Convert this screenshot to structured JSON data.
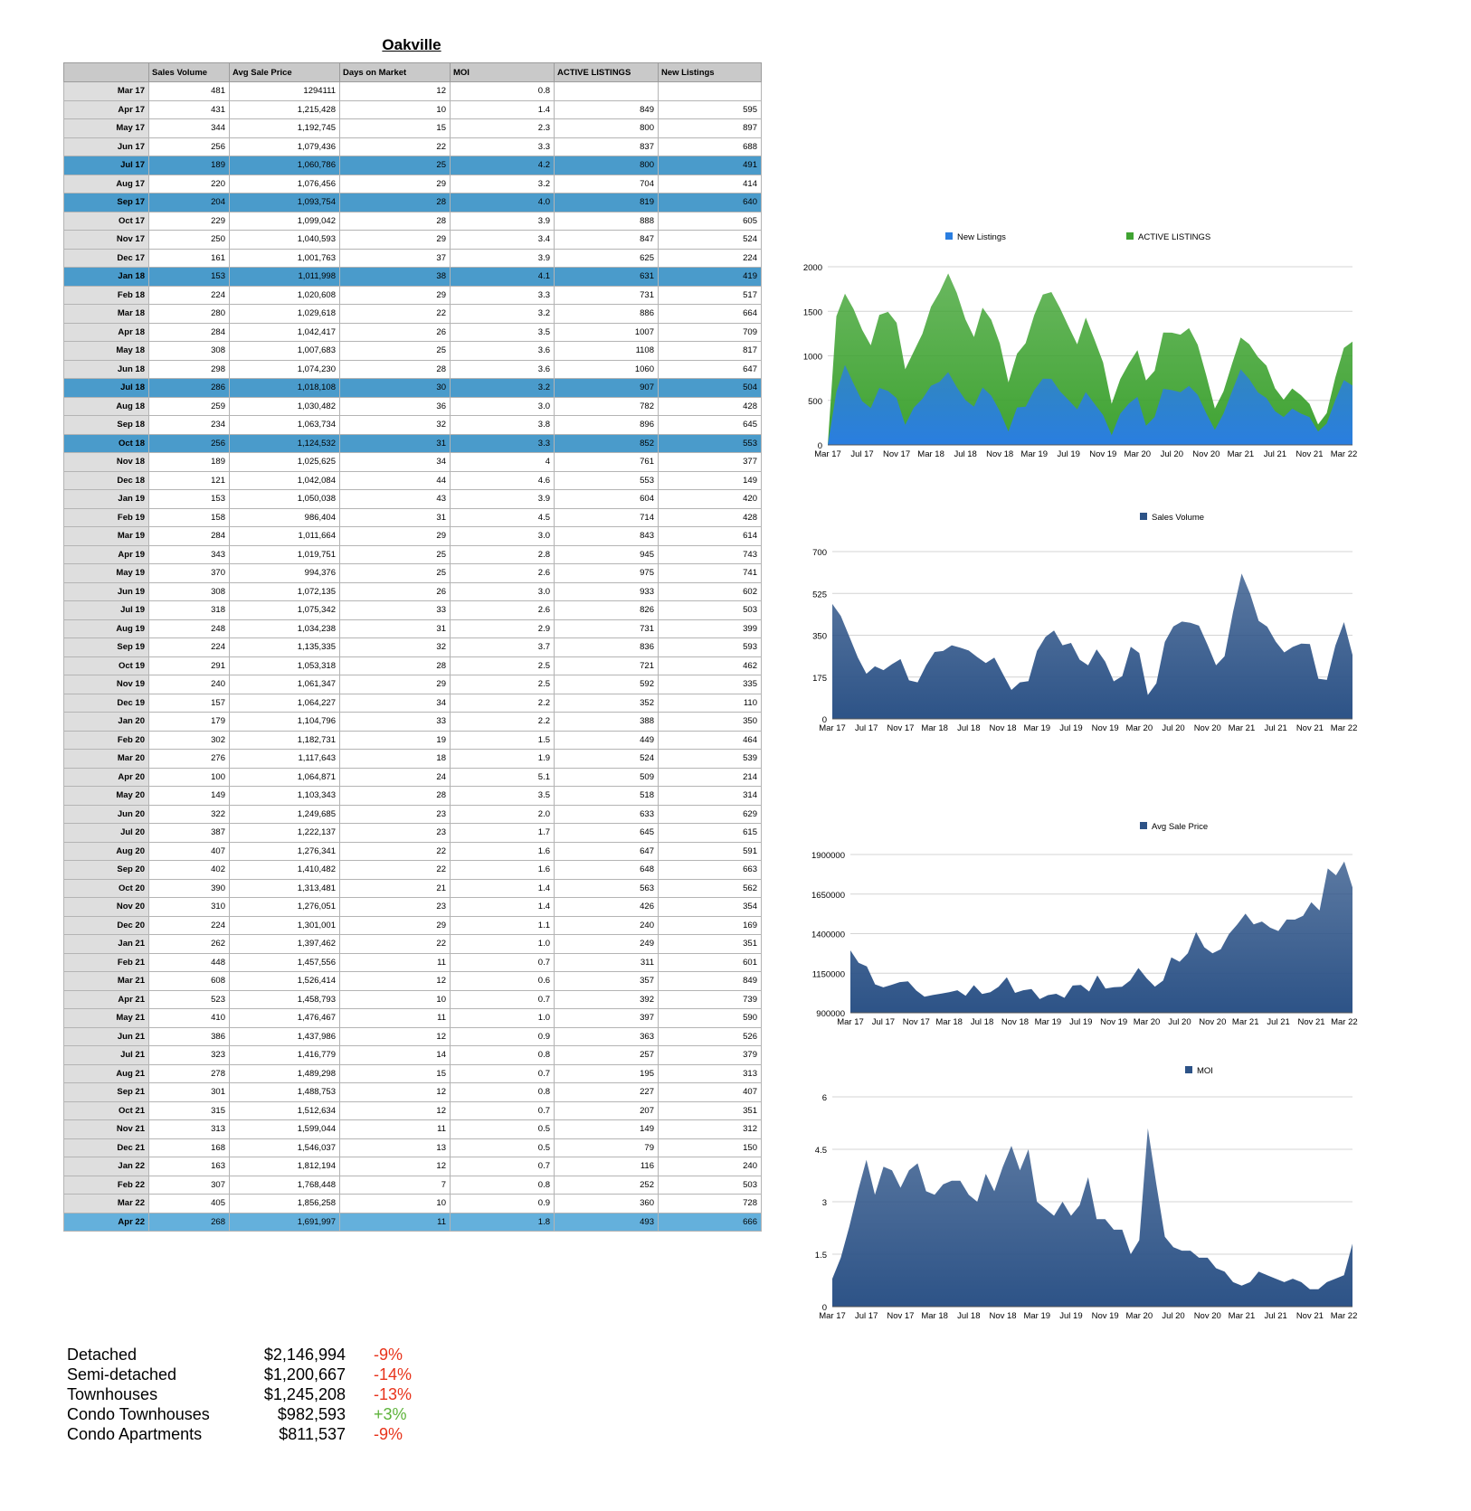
{
  "title": "Oakville",
  "table": {
    "columns": [
      "",
      "Sales Volume",
      "Avg Sale Price",
      "Days on Market",
      "MOI",
      "ACTIVE LISTINGS",
      "New Listings"
    ],
    "highlight_rows": [
      4,
      6,
      10,
      16,
      19
    ],
    "highlight_rows_light": [
      61,
      62
    ],
    "rows": [
      [
        "Mar 17",
        "481",
        "1294111",
        "12",
        "0.8",
        "",
        ""
      ],
      [
        "Apr 17",
        "431",
        "1,215,428",
        "10",
        "1.4",
        "849",
        "595"
      ],
      [
        "May 17",
        "344",
        "1,192,745",
        "15",
        "2.3",
        "800",
        "897"
      ],
      [
        "Jun 17",
        "256",
        "1,079,436",
        "22",
        "3.3",
        "837",
        "688"
      ],
      [
        "Jul 17",
        "189",
        "1,060,786",
        "25",
        "4.2",
        "800",
        "491"
      ],
      [
        "Aug 17",
        "220",
        "1,076,456",
        "29",
        "3.2",
        "704",
        "414"
      ],
      [
        "Sep 17",
        "204",
        "1,093,754",
        "28",
        "4.0",
        "819",
        "640"
      ],
      [
        "Oct 17",
        "229",
        "1,099,042",
        "28",
        "3.9",
        "888",
        "605"
      ],
      [
        "Nov 17",
        "250",
        "1,040,593",
        "29",
        "3.4",
        "847",
        "524"
      ],
      [
        "Dec 17",
        "161",
        "1,001,763",
        "37",
        "3.9",
        "625",
        "224"
      ],
      [
        "Jan 18",
        "153",
        "1,011,998",
        "38",
        "4.1",
        "631",
        "419"
      ],
      [
        "Feb 18",
        "224",
        "1,020,608",
        "29",
        "3.3",
        "731",
        "517"
      ],
      [
        "Mar 18",
        "280",
        "1,029,618",
        "22",
        "3.2",
        "886",
        "664"
      ],
      [
        "Apr 18",
        "284",
        "1,042,417",
        "26",
        "3.5",
        "1007",
        "709"
      ],
      [
        "May 18",
        "308",
        "1,007,683",
        "25",
        "3.6",
        "1108",
        "817"
      ],
      [
        "Jun 18",
        "298",
        "1,074,230",
        "28",
        "3.6",
        "1060",
        "647"
      ],
      [
        "Jul 18",
        "286",
        "1,018,108",
        "30",
        "3.2",
        "907",
        "504"
      ],
      [
        "Aug 18",
        "259",
        "1,030,482",
        "36",
        "3.0",
        "782",
        "428"
      ],
      [
        "Sep 18",
        "234",
        "1,063,734",
        "32",
        "3.8",
        "896",
        "645"
      ],
      [
        "Oct 18",
        "256",
        "1,124,532",
        "31",
        "3.3",
        "852",
        "553"
      ],
      [
        "Nov 18",
        "189",
        "1,025,625",
        "34",
        "4",
        "761",
        "377"
      ],
      [
        "Dec 18",
        "121",
        "1,042,084",
        "44",
        "4.6",
        "553",
        "149"
      ],
      [
        "Jan 19",
        "153",
        "1,050,038",
        "43",
        "3.9",
        "604",
        "420"
      ],
      [
        "Feb 19",
        "158",
        "986,404",
        "31",
        "4.5",
        "714",
        "428"
      ],
      [
        "Mar 19",
        "284",
        "1,011,664",
        "29",
        "3.0",
        "843",
        "614"
      ],
      [
        "Apr 19",
        "343",
        "1,019,751",
        "25",
        "2.8",
        "945",
        "743"
      ],
      [
        "May 19",
        "370",
        "994,376",
        "25",
        "2.6",
        "975",
        "741"
      ],
      [
        "Jun 19",
        "308",
        "1,072,135",
        "26",
        "3.0",
        "933",
        "602"
      ],
      [
        "Jul 19",
        "318",
        "1,075,342",
        "33",
        "2.6",
        "826",
        "503"
      ],
      [
        "Aug 19",
        "248",
        "1,034,238",
        "31",
        "2.9",
        "731",
        "399"
      ],
      [
        "Sep 19",
        "224",
        "1,135,335",
        "32",
        "3.7",
        "836",
        "593"
      ],
      [
        "Oct 19",
        "291",
        "1,053,318",
        "28",
        "2.5",
        "721",
        "462"
      ],
      [
        "Nov 19",
        "240",
        "1,061,347",
        "29",
        "2.5",
        "592",
        "335"
      ],
      [
        "Dec 19",
        "157",
        "1,064,227",
        "34",
        "2.2",
        "352",
        "110"
      ],
      [
        "Jan 20",
        "179",
        "1,104,796",
        "33",
        "2.2",
        "388",
        "350"
      ],
      [
        "Feb 20",
        "302",
        "1,182,731",
        "19",
        "1.5",
        "449",
        "464"
      ],
      [
        "Mar 20",
        "276",
        "1,117,643",
        "18",
        "1.9",
        "524",
        "539"
      ],
      [
        "Apr 20",
        "100",
        "1,064,871",
        "24",
        "5.1",
        "509",
        "214"
      ],
      [
        "May 20",
        "149",
        "1,103,343",
        "28",
        "3.5",
        "518",
        "314"
      ],
      [
        "Jun 20",
        "322",
        "1,249,685",
        "23",
        "2.0",
        "633",
        "629"
      ],
      [
        "Jul 20",
        "387",
        "1,222,137",
        "23",
        "1.7",
        "645",
        "615"
      ],
      [
        "Aug 20",
        "407",
        "1,276,341",
        "22",
        "1.6",
        "647",
        "591"
      ],
      [
        "Sep 20",
        "402",
        "1,410,482",
        "22",
        "1.6",
        "648",
        "663"
      ],
      [
        "Oct 20",
        "390",
        "1,313,481",
        "21",
        "1.4",
        "563",
        "562"
      ],
      [
        "Nov 20",
        "310",
        "1,276,051",
        "23",
        "1.4",
        "426",
        "354"
      ],
      [
        "Dec 20",
        "224",
        "1,301,001",
        "29",
        "1.1",
        "240",
        "169"
      ],
      [
        "Jan 21",
        "262",
        "1,397,462",
        "22",
        "1.0",
        "249",
        "351"
      ],
      [
        "Feb 21",
        "448",
        "1,457,556",
        "11",
        "0.7",
        "311",
        "601"
      ],
      [
        "Mar 21",
        "608",
        "1,526,414",
        "12",
        "0.6",
        "357",
        "849"
      ],
      [
        "Apr 21",
        "523",
        "1,458,793",
        "10",
        "0.7",
        "392",
        "739"
      ],
      [
        "May 21",
        "410",
        "1,476,467",
        "11",
        "1.0",
        "397",
        "590"
      ],
      [
        "Jun 21",
        "386",
        "1,437,986",
        "12",
        "0.9",
        "363",
        "526"
      ],
      [
        "Jul 21",
        "323",
        "1,416,779",
        "14",
        "0.8",
        "257",
        "379"
      ],
      [
        "Aug 21",
        "278",
        "1,489,298",
        "15",
        "0.7",
        "195",
        "313"
      ],
      [
        "Sep 21",
        "301",
        "1,488,753",
        "12",
        "0.8",
        "227",
        "407"
      ],
      [
        "Oct 21",
        "315",
        "1,512,634",
        "12",
        "0.7",
        "207",
        "351"
      ],
      [
        "Nov 21",
        "313",
        "1,599,044",
        "11",
        "0.5",
        "149",
        "312"
      ],
      [
        "Dec 21",
        "168",
        "1,546,037",
        "13",
        "0.5",
        "79",
        "150"
      ],
      [
        "Jan 22",
        "163",
        "1,812,194",
        "12",
        "0.7",
        "116",
        "240"
      ],
      [
        "Feb 22",
        "307",
        "1,768,448",
        "7",
        "0.8",
        "252",
        "503"
      ],
      [
        "Mar 22",
        "405",
        "1,856,258",
        "10",
        "0.9",
        "360",
        "728"
      ],
      [
        "Apr 22",
        "268",
        "1,691,997",
        "11",
        "1.8",
        "493",
        "666"
      ]
    ]
  },
  "summary": [
    {
      "name": "Detached",
      "value": "$2,146,994",
      "change": "-9%",
      "color": "#e8341c"
    },
    {
      "name": "Semi-detached",
      "value": "$1,200,667",
      "change": "-14%",
      "color": "#e8341c"
    },
    {
      "name": "Townhouses",
      "value": "$1,245,208",
      "change": "-13%",
      "color": "#e8341c"
    },
    {
      "name": "Condo Townhouses",
      "value": "$982,593",
      "change": "+3%",
      "color": "#5db33a"
    },
    {
      "name": "Condo Apartments",
      "value": "$811,537",
      "change": "-9%",
      "color": "#e8341c"
    }
  ],
  "chart_data": [
    {
      "type": "area",
      "stacked": true,
      "x_ticks": [
        "Mar 17",
        "Jul 17",
        "Nov 17",
        "Mar 18",
        "Jul 18",
        "Nov 18",
        "Mar 19",
        "Jul 19",
        "Nov 19",
        "Mar 20",
        "Jul 20",
        "Nov 20",
        "Mar 21",
        "Jul 21",
        "Nov 21",
        "Mar 22"
      ],
      "ylim": [
        0,
        2000
      ],
      "yticks": [
        "0",
        "500",
        "1000",
        "1500",
        "2000"
      ],
      "legend": "top",
      "grid": true,
      "series": [
        {
          "name": "New Listings",
          "color": "#2a7ee0",
          "values": [
            0,
            595,
            897,
            688,
            491,
            414,
            640,
            605,
            524,
            224,
            419,
            517,
            664,
            709,
            817,
            647,
            504,
            428,
            645,
            553,
            377,
            149,
            420,
            428,
            614,
            743,
            741,
            602,
            503,
            399,
            593,
            462,
            335,
            110,
            350,
            464,
            539,
            214,
            314,
            629,
            615,
            591,
            663,
            562,
            354,
            169,
            351,
            601,
            849,
            739,
            590,
            526,
            379,
            313,
            407,
            351,
            312,
            150,
            240,
            503,
            728,
            666
          ]
        },
        {
          "name": "ACTIVE LISTINGS",
          "color": "#3fa332",
          "values": [
            0,
            849,
            800,
            837,
            800,
            704,
            819,
            888,
            847,
            625,
            631,
            731,
            886,
            1007,
            1108,
            1060,
            907,
            782,
            896,
            852,
            761,
            553,
            604,
            714,
            843,
            945,
            975,
            933,
            826,
            731,
            836,
            721,
            592,
            352,
            388,
            449,
            524,
            509,
            518,
            633,
            645,
            647,
            648,
            563,
            426,
            240,
            249,
            311,
            357,
            392,
            397,
            363,
            257,
            195,
            227,
            207,
            149,
            79,
            116,
            252,
            360,
            493
          ]
        }
      ]
    },
    {
      "type": "area",
      "x_ticks": [
        "Mar 17",
        "Jul 17",
        "Nov 17",
        "Mar 18",
        "Jul 18",
        "Nov 18",
        "Mar 19",
        "Jul 19",
        "Nov 19",
        "Mar 20",
        "Jul 20",
        "Nov 20",
        "Mar 21",
        "Jul 21",
        "Nov 21",
        "Mar 22"
      ],
      "ylim": [
        0,
        700
      ],
      "yticks": [
        "0",
        "175",
        "350",
        "525",
        "700"
      ],
      "legend": "top",
      "grid": true,
      "series": [
        {
          "name": "Sales Volume",
          "color": "#2d5387",
          "values": [
            481,
            431,
            344,
            256,
            189,
            220,
            204,
            229,
            250,
            161,
            153,
            224,
            280,
            284,
            308,
            298,
            286,
            259,
            234,
            256,
            189,
            121,
            153,
            158,
            284,
            343,
            370,
            308,
            318,
            248,
            224,
            291,
            240,
            157,
            179,
            302,
            276,
            100,
            149,
            322,
            387,
            407,
            402,
            390,
            310,
            224,
            262,
            448,
            608,
            523,
            410,
            386,
            323,
            278,
            301,
            315,
            313,
            168,
            163,
            307,
            405,
            268
          ]
        }
      ]
    },
    {
      "type": "area",
      "x_ticks": [
        "Mar 17",
        "Jul 17",
        "Nov 17",
        "Mar 18",
        "Jul 18",
        "Nov 18",
        "Mar 19",
        "Jul 19",
        "Nov 19",
        "Mar 20",
        "Jul 20",
        "Nov 20",
        "Mar 21",
        "Jul 21",
        "Nov 21",
        "Mar 22"
      ],
      "ylim": [
        900000,
        1900000
      ],
      "yticks": [
        "900000",
        "1150000",
        "1400000",
        "1650000",
        "1900000"
      ],
      "legend": "top",
      "grid": true,
      "series": [
        {
          "name": "Avg Sale Price",
          "color": "#2d5387",
          "values": [
            1294111,
            1215428,
            1192745,
            1079436,
            1060786,
            1076456,
            1093754,
            1099042,
            1040593,
            1001763,
            1011998,
            1020608,
            1029618,
            1042417,
            1007683,
            1074230,
            1018108,
            1030482,
            1063734,
            1124532,
            1025625,
            1042084,
            1050038,
            986404,
            1011664,
            1019751,
            994376,
            1072135,
            1075342,
            1034238,
            1135335,
            1053318,
            1061347,
            1064227,
            1104796,
            1182731,
            1117643,
            1064871,
            1103343,
            1249685,
            1222137,
            1276341,
            1410482,
            1313481,
            1276051,
            1301001,
            1397462,
            1457556,
            1526414,
            1458793,
            1476467,
            1437986,
            1416779,
            1489298,
            1488753,
            1512634,
            1599044,
            1546037,
            1812194,
            1768448,
            1856258,
            1691997
          ]
        }
      ]
    },
    {
      "type": "area",
      "x_ticks": [
        "Mar 17",
        "Jul 17",
        "Nov 17",
        "Mar 18",
        "Jul 18",
        "Nov 18",
        "Mar 19",
        "Jul 19",
        "Nov 19",
        "Mar 20",
        "Jul 20",
        "Nov 20",
        "Mar 21",
        "Jul 21",
        "Nov 21",
        "Mar 22"
      ],
      "ylim": [
        0,
        6
      ],
      "yticks": [
        "0",
        "1.5",
        "3",
        "4.5",
        "6"
      ],
      "legend": "top",
      "grid": true,
      "series": [
        {
          "name": "MOI",
          "color": "#2d5387",
          "values": [
            0.8,
            1.4,
            2.3,
            3.3,
            4.2,
            3.2,
            4.0,
            3.9,
            3.4,
            3.9,
            4.1,
            3.3,
            3.2,
            3.5,
            3.6,
            3.6,
            3.2,
            3.0,
            3.8,
            3.3,
            4,
            4.6,
            3.9,
            4.5,
            3.0,
            2.8,
            2.6,
            3.0,
            2.6,
            2.9,
            3.7,
            2.5,
            2.5,
            2.2,
            2.2,
            1.5,
            1.9,
            5.1,
            3.5,
            2.0,
            1.7,
            1.6,
            1.6,
            1.4,
            1.4,
            1.1,
            1.0,
            0.7,
            0.6,
            0.7,
            1.0,
            0.9,
            0.8,
            0.7,
            0.8,
            0.7,
            0.5,
            0.5,
            0.7,
            0.8,
            0.9,
            1.8
          ]
        }
      ]
    }
  ]
}
